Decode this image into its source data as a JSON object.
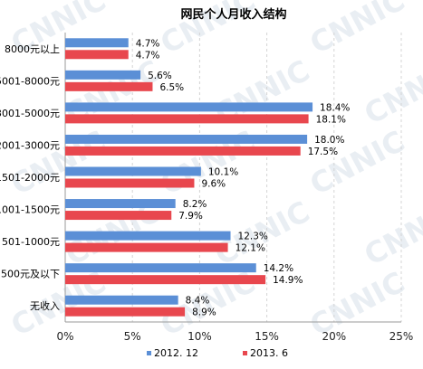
{
  "chart_data": {
    "type": "bar",
    "orientation": "horizontal",
    "title": "网民个人月收入结构",
    "categories": [
      "8000元以上",
      "5001-8000元",
      "3001-5000元",
      "2001-3000元",
      "1501-2000元",
      "1001-1500元",
      "501-1000元",
      "500元及以下",
      "无收入"
    ],
    "series": [
      {
        "name": "2012. 12",
        "color": "#5b8fd6",
        "values": [
          4.7,
          5.6,
          18.4,
          18.0,
          10.1,
          8.2,
          12.3,
          14.2,
          8.4
        ],
        "labels": [
          "4.7%",
          "5.6%",
          "18.4%",
          "18.0%",
          "10.1%",
          "8.2%",
          "12.3%",
          "14.2%",
          "8.4%"
        ]
      },
      {
        "name": "2013. 6",
        "color": "#e8474e",
        "values": [
          4.7,
          6.5,
          18.1,
          17.5,
          9.6,
          7.9,
          12.1,
          14.9,
          8.9
        ],
        "labels": [
          "4.7%",
          "6.5%",
          "18.1%",
          "17.5%",
          "9.6%",
          "7.9%",
          "12.1%",
          "14.9%",
          "8.9%"
        ]
      }
    ],
    "xlim": [
      0,
      25
    ],
    "xticks": [
      0,
      5,
      10,
      15,
      20,
      25
    ],
    "xtick_labels": [
      "0%",
      "5%",
      "10%",
      "15%",
      "20%",
      "25%"
    ],
    "grid": true,
    "legend_position": "bottom",
    "watermark": "CNNIC"
  }
}
